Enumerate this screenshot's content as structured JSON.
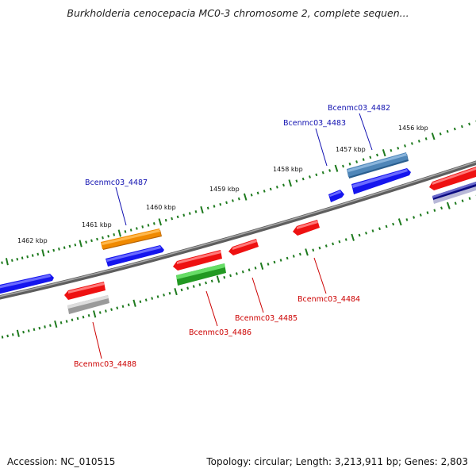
{
  "title": "Burkholderia cenocepacia MC0-3 chromosome 2, complete sequen...",
  "footer": {
    "accession": "Accession: NC_010515",
    "summary": "Topology: circular; Length: 3,213,911 bp; Genes: 2,803"
  },
  "scale_labels": [
    "1462 kbp",
    "1461 kbp",
    "1460 kbp",
    "1459 kbp",
    "1458 kbp",
    "1457 kbp",
    "1456 kbp"
  ],
  "gene_labels": {
    "forward": [
      "Bcenmc03_4487",
      "Bcenmc03_4483",
      "Bcenmc03_4482"
    ],
    "reverse": [
      "Bcenmc03_4488",
      "Bcenmc03_4486",
      "Bcenmc03_4485",
      "Bcenmc03_4484"
    ]
  },
  "colors": {
    "forward_label": "#1010b0",
    "reverse_label": "#cc0000",
    "backbone": "#808080",
    "tick": "#1e7a1e",
    "cds_blue": "#1515ee",
    "cds_red": "#ee1111",
    "cds_orange": "#f08a00",
    "cds_green": "#33cc33",
    "cds_steelblue": "#4f86b8",
    "cds_gray": "#b8b8b8"
  }
}
